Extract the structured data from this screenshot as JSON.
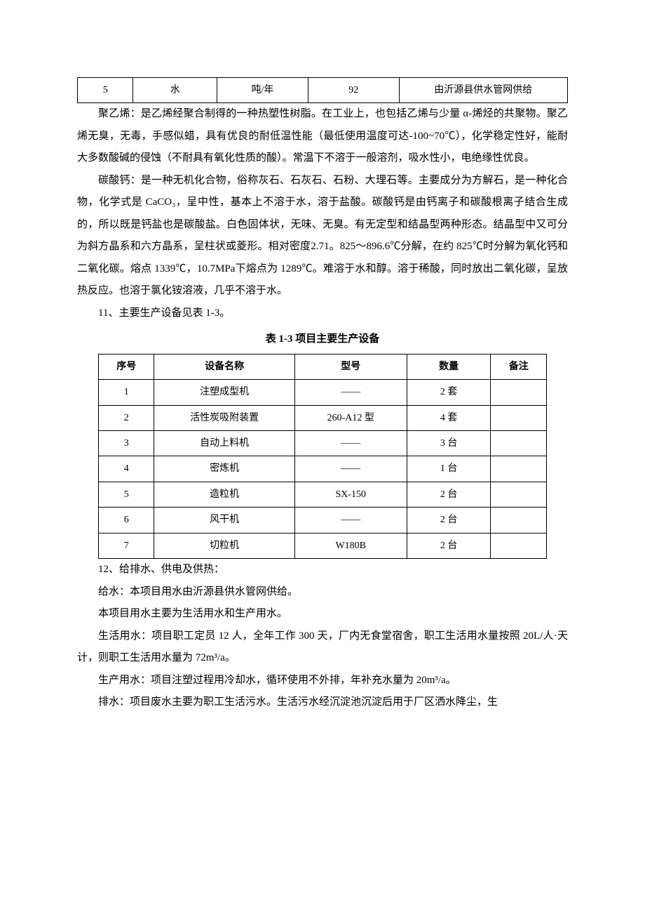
{
  "table1": {
    "rows": [
      [
        "5",
        "水",
        "吨/年",
        "92",
        "由沂源县供水管网供给"
      ]
    ]
  },
  "paragraphs": {
    "p1": "聚乙烯：是乙烯经聚合制得的一种热塑性树脂。在工业上，也包括乙烯与少量 α-烯烃的共聚物。聚乙烯无臭，无毒，手感似蜡，具有优良的耐低温性能（最低使用温度可达-100~70℃），化学稳定性好，能耐大多数酸碱的侵蚀（不耐具有氧化性质的酸）。常温下不溶于一般溶剂，吸水性小，电绝缘性优良。",
    "p2": "碳酸钙：是一种无机化合物，俗称灰石、石灰石、石粉、大理石等。主要成分为方解石，是一种化合物，化学式是 CaCO₃，呈中性，基本上不溶于水，溶于盐酸。碳酸钙是由钙离子和碳酸根离子结合生成的，所以既是钙盐也是碳酸盐。白色固体状，无味、无臭。有无定型和结晶型两种形态。结晶型中又可分为斜方晶系和六方晶系，呈柱状或菱形。相对密度2.71。825～896.6℃分解，在约 825℃时分解为氧化钙和二氧化碳。熔点 1339℃，10.7MPa下熔点为 1289℃。难溶于水和醇。溶于稀酸，同时放出二氧化碳，呈放热反应。也溶于氯化铵溶液，几乎不溶于水。",
    "p3": "11、主要生产设备见表 1-3。",
    "table2_title": "表 1-3 项目主要生产设备",
    "p4": "12、给排水、供电及供热：",
    "p5": "给水：本项目用水由沂源县供水管网供给。",
    "p6": "本项目用水主要为生活用水和生产用水。",
    "p7": "生活用水：项目职工定员 12 人，全年工作 300 天，厂内无食堂宿舍，职工生活用水量按照 20L/人·天计，则职工生活用水量为 72m³/a。",
    "p8": "生产用水：项目注塑过程用冷却水，循环使用不外排，年补充水量为 20m³/a。",
    "p9": "排水：项目废水主要为职工生活污水。生活污水经沉淀池沉淀后用于厂区洒水降尘，生"
  },
  "table2": {
    "headers": [
      "序号",
      "设备名称",
      "型号",
      "数量",
      "备注"
    ],
    "rows": [
      [
        "1",
        "注塑成型机",
        "——",
        "2 套",
        ""
      ],
      [
        "2",
        "活性炭吸附装置",
        "260-A12 型",
        "4 套",
        ""
      ],
      [
        "3",
        "自动上料机",
        "——",
        "3 台",
        ""
      ],
      [
        "4",
        "密炼机",
        "——",
        "1 台",
        ""
      ],
      [
        "5",
        "造粒机",
        "SX-150",
        "2 台",
        ""
      ],
      [
        "6",
        "风干机",
        "——",
        "2 台",
        ""
      ],
      [
        "7",
        "切粒机",
        "W180B",
        "2 台",
        ""
      ]
    ]
  }
}
